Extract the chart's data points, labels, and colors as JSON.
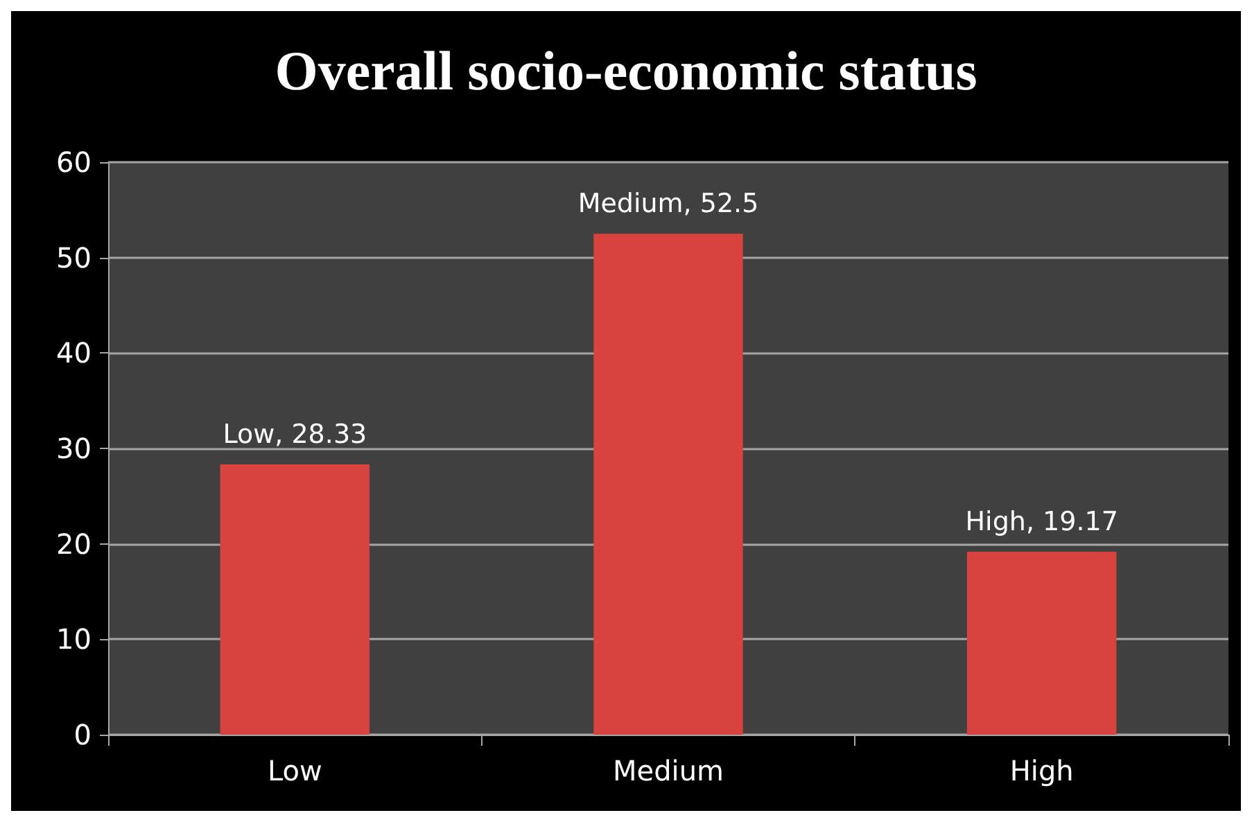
{
  "chart_data": {
    "type": "bar",
    "title": "Overall socio-economic status",
    "categories": [
      "Low",
      "Medium",
      "High"
    ],
    "values": [
      28.33,
      52.5,
      19.17
    ],
    "value_labels": [
      "Low, 28.33",
      "Medium, 52.5",
      "High, 19.17"
    ],
    "color": "#d8433e",
    "ylim": [
      0,
      60
    ],
    "yticks": [
      0,
      10,
      20,
      30,
      40,
      50,
      60
    ],
    "grid": "y"
  }
}
